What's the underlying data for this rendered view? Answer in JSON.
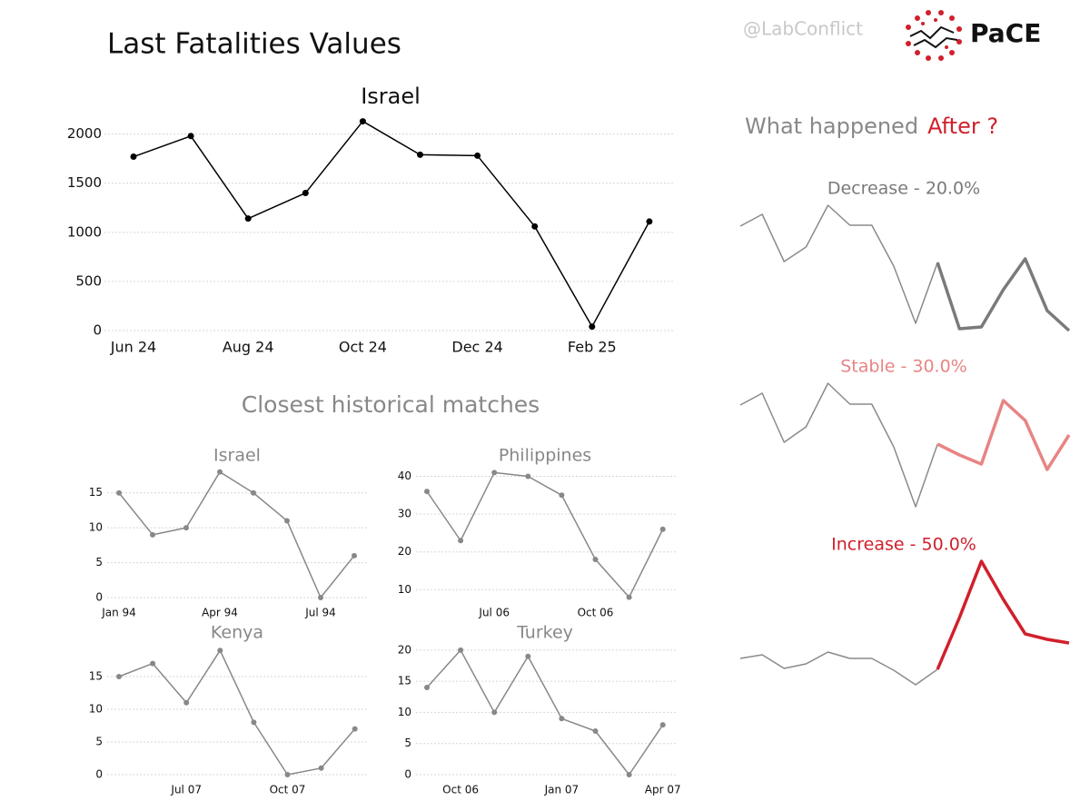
{
  "header": {
    "title": "Last Fatalities Values",
    "handle": "@LabConflict",
    "brand": "PaCE"
  },
  "side": {
    "question": "What happened",
    "highlight": "After ?"
  },
  "section_title": "Closest historical matches",
  "chart_data": [
    {
      "type": "line",
      "title": "Israel",
      "categories": [
        "Jun 24",
        null,
        "Aug 24",
        null,
        "Oct 24",
        null,
        "Dec 24",
        null,
        "Feb 25",
        null
      ],
      "values": [
        1770,
        1980,
        1140,
        1400,
        2130,
        1790,
        1780,
        1060,
        40,
        1110
      ],
      "color": "#000000",
      "markers": true,
      "ylim": [
        0,
        2200
      ],
      "yticks": [
        0,
        500,
        1000,
        1500,
        2000
      ],
      "grid": true
    },
    {
      "type": "line",
      "title": "Israel",
      "categories": [
        "Jan 94",
        null,
        null,
        "Apr 94",
        null,
        null,
        "Jul 94",
        null
      ],
      "values": [
        15,
        9,
        10,
        18,
        15,
        11,
        0,
        6
      ],
      "color": "#888888",
      "markers": true,
      "ylim": [
        0,
        19
      ],
      "yticks": [
        0,
        5,
        10,
        15
      ],
      "grid": true
    },
    {
      "type": "line",
      "title": "Philippines",
      "categories": [
        null,
        null,
        "Jul 06",
        null,
        null,
        "Oct 06",
        null,
        null
      ],
      "values": [
        36,
        23,
        41,
        40,
        35,
        18,
        8,
        26
      ],
      "color": "#888888",
      "markers": true,
      "ylim": [
        6,
        43
      ],
      "yticks": [
        10,
        20,
        30,
        40
      ],
      "grid": true
    },
    {
      "type": "line",
      "title": "Kenya",
      "categories": [
        null,
        null,
        "Jul 07",
        null,
        null,
        "Oct 07",
        null,
        null
      ],
      "values": [
        15,
        17,
        11,
        19,
        8,
        0,
        1,
        7
      ],
      "color": "#888888",
      "markers": true,
      "ylim": [
        0,
        20
      ],
      "yticks": [
        0,
        5,
        10,
        15
      ],
      "grid": true
    },
    {
      "type": "line",
      "title": "Turkey",
      "categories": [
        null,
        "Oct 06",
        null,
        null,
        "Jan 07",
        null,
        null,
        "Apr 07"
      ],
      "values": [
        14,
        20,
        10,
        19,
        9,
        7,
        0,
        8
      ],
      "color": "#888888",
      "markers": true,
      "ylim": [
        0,
        21
      ],
      "yticks": [
        0,
        5,
        10,
        15,
        20
      ],
      "grid": true
    },
    {
      "type": "line",
      "title": "Decrease - 20.0%",
      "ylim": [
        0,
        160
      ],
      "series": [
        {
          "color": "#8a8a8a",
          "values": [
            121,
            134,
            82,
            98,
            144,
            122,
            122,
            77,
            14,
            81,
            null,
            null,
            null,
            null,
            null,
            null
          ]
        },
        {
          "color": "#7a7a7a",
          "values": [
            null,
            null,
            null,
            null,
            null,
            null,
            null,
            null,
            null,
            81,
            8,
            10,
            51,
            85,
            28,
            6
          ]
        }
      ]
    },
    {
      "type": "line",
      "title": "Stable - 30.0%",
      "ylim": [
        0,
        160
      ],
      "series": [
        {
          "color": "#8a8a8a",
          "values": [
            124,
            137,
            83,
            100,
            148,
            125,
            125,
            78,
            12,
            81,
            null,
            null,
            null,
            null,
            null,
            null
          ]
        },
        {
          "color": "#e88484",
          "values": [
            null,
            null,
            null,
            null,
            null,
            null,
            null,
            null,
            null,
            81,
            69,
            59,
            129,
            107,
            53,
            91
          ]
        }
      ]
    },
    {
      "type": "line",
      "title": "Increase - 50.0%",
      "ylim": [
        0,
        160
      ],
      "series": [
        {
          "color": "#8a8a8a",
          "values": [
            45,
            49,
            34,
            39,
            52,
            45,
            45,
            32,
            16,
            33,
            null,
            null,
            null,
            null,
            null,
            null
          ]
        },
        {
          "color": "#d0202c",
          "values": [
            null,
            null,
            null,
            null,
            null,
            null,
            null,
            null,
            null,
            33,
            90,
            152,
            110,
            72,
            66,
            62
          ]
        }
      ]
    }
  ]
}
